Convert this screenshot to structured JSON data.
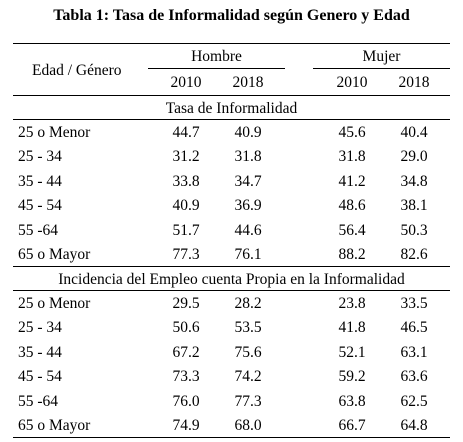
{
  "table": {
    "title": "Tabla 1: Tasa de Informalidad según Genero y Edad",
    "row_header": "Edad / Género",
    "groups": [
      "Hombre",
      "Mujer"
    ],
    "years": [
      "2010",
      "2018",
      "2010",
      "2018"
    ],
    "sections": [
      {
        "title": "Tasa de Informalidad",
        "rows": [
          {
            "label": "25 o Menor",
            "values": [
              "44.7",
              "40.9",
              "45.6",
              "40.4"
            ]
          },
          {
            "label": "25 - 34",
            "values": [
              "31.2",
              "31.8",
              "31.8",
              "29.0"
            ]
          },
          {
            "label": "35 - 44",
            "values": [
              "33.8",
              "34.7",
              "41.2",
              "34.8"
            ]
          },
          {
            "label": "45 - 54",
            "values": [
              "40.9",
              "36.9",
              "48.6",
              "38.1"
            ]
          },
          {
            "label": "55 -64",
            "values": [
              "51.7",
              "44.6",
              "56.4",
              "50.3"
            ]
          },
          {
            "label": "65 o Mayor",
            "values": [
              "77.3",
              "76.1",
              "88.2",
              "82.6"
            ]
          }
        ]
      },
      {
        "title": "Incidencia del Empleo cuenta Propia en la Informalidad",
        "rows": [
          {
            "label": "25 o Menor",
            "values": [
              "29.5",
              "28.2",
              "23.8",
              "33.5"
            ]
          },
          {
            "label": "25 - 34",
            "values": [
              "50.6",
              "53.5",
              "41.8",
              "46.5"
            ]
          },
          {
            "label": "35 - 44",
            "values": [
              "67.2",
              "75.6",
              "52.1",
              "63.1"
            ]
          },
          {
            "label": "45 - 54",
            "values": [
              "73.3",
              "74.2",
              "59.2",
              "63.6"
            ]
          },
          {
            "label": "55 -64",
            "values": [
              "76.0",
              "77.3",
              "63.8",
              "62.5"
            ]
          },
          {
            "label": "65 o Mayor",
            "values": [
              "74.9",
              "68.0",
              "66.7",
              "64.8"
            ]
          }
        ]
      }
    ]
  }
}
